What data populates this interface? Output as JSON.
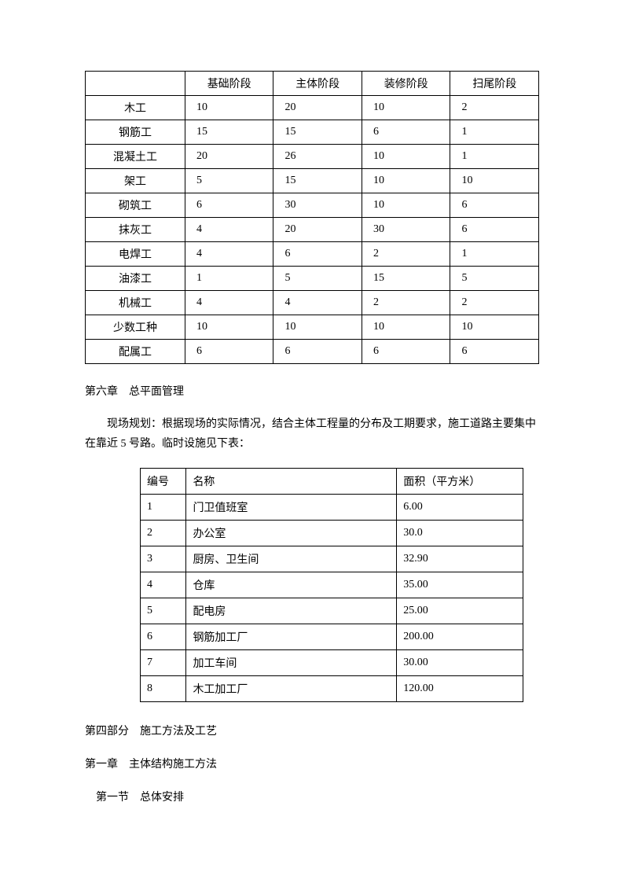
{
  "table1": {
    "headers": [
      "",
      "基础阶段",
      "主体阶段",
      "装修阶段",
      "扫尾阶段"
    ],
    "rows": [
      {
        "label": "木工",
        "v1": "10",
        "v2": "20",
        "v3": "10",
        "v4": "2"
      },
      {
        "label": "钢筋工",
        "v1": "15",
        "v2": "15",
        "v3": "6",
        "v4": "1"
      },
      {
        "label": "混凝土工",
        "v1": "20",
        "v2": "26",
        "v3": "10",
        "v4": "1"
      },
      {
        "label": "架工",
        "v1": "5",
        "v2": "15",
        "v3": "10",
        "v4": "10"
      },
      {
        "label": "砌筑工",
        "v1": "6",
        "v2": "30",
        "v3": "10",
        "v4": "6"
      },
      {
        "label": "抹灰工",
        "v1": "4",
        "v2": "20",
        "v3": "30",
        "v4": "6"
      },
      {
        "label": "电焊工",
        "v1": "4",
        "v2": "6",
        "v3": "2",
        "v4": "1"
      },
      {
        "label": "油漆工",
        "v1": "1",
        "v2": "5",
        "v3": "15",
        "v4": "5"
      },
      {
        "label": "机械工",
        "v1": "4",
        "v2": "4",
        "v3": "2",
        "v4": "2"
      },
      {
        "label": "少数工种",
        "v1": "10",
        "v2": "10",
        "v3": "10",
        "v4": "10"
      },
      {
        "label": "配属工",
        "v1": "6",
        "v2": "6",
        "v3": "6",
        "v4": "6"
      }
    ]
  },
  "chapter6_heading": "第六章　总平面管理",
  "body_paragraph": "现场规划：根据现场的实际情况，结合主体工程量的分布及工期要求，施工道路主要集中在靠近 5 号路。临时设施见下表：",
  "table2": {
    "headers": {
      "id": "编号",
      "name": "名称",
      "area": "面积（平方米）"
    },
    "rows": [
      {
        "id": "1",
        "name": "门卫值班室",
        "area": "6.00"
      },
      {
        "id": "2",
        "name": "办公室",
        "area": "30.0"
      },
      {
        "id": "3",
        "name": "厨房、卫生间",
        "area": "32.90"
      },
      {
        "id": "4",
        "name": "仓库",
        "area": "35.00"
      },
      {
        "id": "5",
        "name": "配电房",
        "area": "25.00"
      },
      {
        "id": "6",
        "name": "钢筋加工厂",
        "area": "200.00"
      },
      {
        "id": "7",
        "name": "加工车间",
        "area": "30.00"
      },
      {
        "id": "8",
        "name": "木工加工厂",
        "area": "120.00"
      }
    ]
  },
  "part4_heading": "第四部分　施工方法及工艺",
  "chapter1_heading": "第一章　主体结构施工方法",
  "section1_heading": "第一节　总体安排"
}
